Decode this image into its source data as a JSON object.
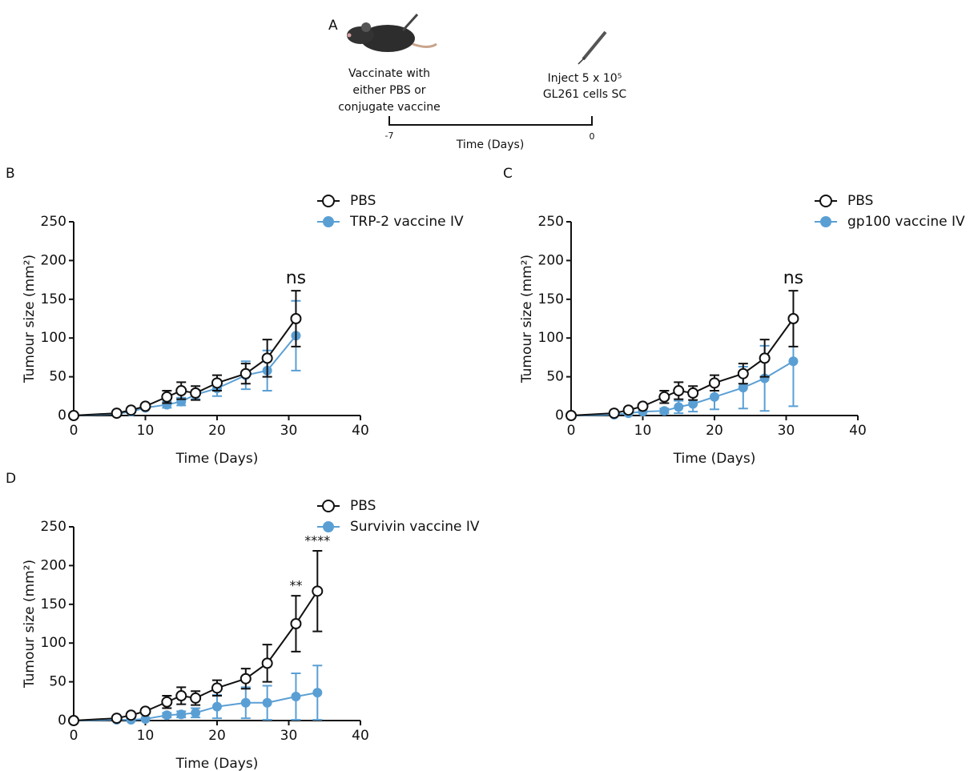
{
  "timeline": {
    "label": "A",
    "left_text": [
      "Vaccinate with",
      "either PBS or",
      "conjugate vaccine"
    ],
    "right_text": [
      "Inject 5 x 10⁵",
      "GL261 cells SC"
    ],
    "ticks": [
      "-7",
      "0"
    ],
    "axis_label": "Time (Days)"
  },
  "chart_data": [
    {
      "type": "line",
      "panel": "B",
      "xlabel": "Time (Days)",
      "ylabel": "Tumour size (mm²)",
      "xlim": [
        0,
        40
      ],
      "xticks": [
        0,
        10,
        20,
        30,
        40
      ],
      "ylim": [
        0,
        250
      ],
      "yticks": [
        0,
        50,
        100,
        150,
        200,
        250
      ],
      "x": [
        0,
        6,
        8,
        10,
        13,
        15,
        17,
        20,
        24,
        27,
        31
      ],
      "series": [
        {
          "name": "PBS",
          "color": "#111111",
          "marker": "open",
          "values": [
            0,
            3,
            7,
            12,
            24,
            32,
            29,
            42,
            54,
            74,
            125
          ],
          "error": [
            null,
            null,
            null,
            3,
            8,
            11,
            9,
            10,
            13,
            24,
            36
          ]
        },
        {
          "name": "TRP-2 vaccine IV",
          "color": "#5a9fd4",
          "marker": "filled",
          "values": [
            0,
            2,
            5,
            10,
            14,
            18,
            27,
            35,
            52,
            58,
            103
          ],
          "error": [
            null,
            null,
            null,
            null,
            4,
            5,
            6,
            10,
            18,
            26,
            45
          ]
        }
      ],
      "annotations": [
        {
          "x": 31,
          "text": "ns"
        }
      ]
    },
    {
      "type": "line",
      "panel": "C",
      "xlabel": "Time (Days)",
      "ylabel": "Tumour size (mm²)",
      "xlim": [
        0,
        40
      ],
      "xticks": [
        0,
        10,
        20,
        30,
        40
      ],
      "ylim": [
        0,
        250
      ],
      "yticks": [
        0,
        50,
        100,
        150,
        200,
        250
      ],
      "x": [
        0,
        6,
        8,
        10,
        13,
        15,
        17,
        20,
        24,
        27,
        31
      ],
      "series": [
        {
          "name": "PBS",
          "color": "#111111",
          "marker": "open",
          "values": [
            0,
            3,
            7,
            12,
            24,
            32,
            29,
            42,
            54,
            74,
            125
          ],
          "error": [
            null,
            null,
            null,
            3,
            8,
            11,
            9,
            10,
            13,
            24,
            36
          ]
        },
        {
          "name": "gp100 vaccine IV",
          "color": "#5a9fd4",
          "marker": "filled",
          "values": [
            0,
            1,
            3,
            5,
            6,
            11,
            15,
            24,
            36,
            48,
            70
          ],
          "error": [
            null,
            null,
            null,
            null,
            3,
            8,
            10,
            16,
            27,
            42,
            58
          ]
        }
      ],
      "annotations": [
        {
          "x": 31,
          "text": "ns"
        }
      ]
    },
    {
      "type": "line",
      "panel": "D",
      "xlabel": "Time (Days)",
      "ylabel": "Tumour size (mm²)",
      "xlim": [
        0,
        40
      ],
      "xticks": [
        0,
        10,
        20,
        30,
        40
      ],
      "ylim": [
        0,
        250
      ],
      "yticks": [
        0,
        50,
        100,
        150,
        200,
        250
      ],
      "x": [
        0,
        6,
        8,
        10,
        13,
        15,
        17,
        20,
        24,
        27,
        31,
        34
      ],
      "series": [
        {
          "name": "PBS",
          "color": "#111111",
          "marker": "open",
          "values": [
            0,
            3,
            7,
            12,
            24,
            32,
            29,
            42,
            54,
            74,
            125,
            167
          ],
          "error": [
            null,
            null,
            null,
            3,
            8,
            11,
            9,
            10,
            13,
            24,
            36,
            52
          ]
        },
        {
          "name": "Survivin vaccine IV",
          "color": "#5a9fd4",
          "marker": "filled",
          "values": [
            0,
            1,
            1,
            2,
            7,
            8,
            10,
            18,
            23,
            23,
            31,
            36
          ],
          "error": [
            null,
            null,
            null,
            null,
            3,
            4,
            6,
            15,
            20,
            22,
            30,
            35
          ]
        }
      ],
      "annotations": [
        {
          "x": 31,
          "text": "**"
        },
        {
          "x": 34,
          "text": "****"
        }
      ]
    }
  ]
}
